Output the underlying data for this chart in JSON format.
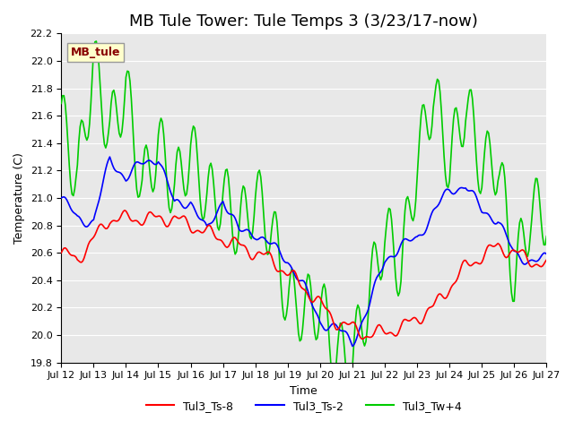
{
  "title": "MB Tule Tower: Tule Temps 3 (3/23/17-now)",
  "xlabel": "Time",
  "ylabel": "Temperature (C)",
  "ylim": [
    19.8,
    22.2
  ],
  "xlim": [
    0,
    360
  ],
  "background_color": "#e8e8e8",
  "grid_color": "#ffffff",
  "legend_box_label": "MB_tule",
  "legend_box_facecolor": "#ffffcc",
  "legend_box_edgecolor": "#aaaaaa",
  "legend_box_textcolor": "#880000",
  "xtick_labels": [
    "Jul 12",
    "Jul 13",
    "Jul 14",
    "Jul 15",
    "Jul 16",
    "Jul 17",
    "Jul 18",
    "Jul 19",
    "Jul 20",
    "Jul 21",
    "Jul 22",
    "Jul 23",
    "Jul 24",
    "Jul 25",
    "Jul 26",
    "Jul 27"
  ],
  "xtick_positions": [
    0,
    24,
    48,
    72,
    96,
    120,
    144,
    168,
    192,
    216,
    240,
    264,
    288,
    312,
    336,
    360
  ],
  "ytick_labels": [
    "19.8",
    "20.0",
    "20.2",
    "20.4",
    "20.6",
    "20.8",
    "21.0",
    "21.2",
    "21.4",
    "21.6",
    "21.8",
    "22.0",
    "22.2"
  ],
  "ytick_values": [
    19.8,
    20.0,
    20.2,
    20.4,
    20.6,
    20.8,
    21.0,
    21.2,
    21.4,
    21.6,
    21.8,
    22.0,
    22.2
  ],
  "line_colors": [
    "#ff0000",
    "#0000ff",
    "#00cc00"
  ],
  "line_labels": [
    "Tul3_Ts-8",
    "Tul3_Ts-2",
    "Tul3_Tw+4"
  ],
  "line_width": 1.2,
  "title_fontsize": 13
}
